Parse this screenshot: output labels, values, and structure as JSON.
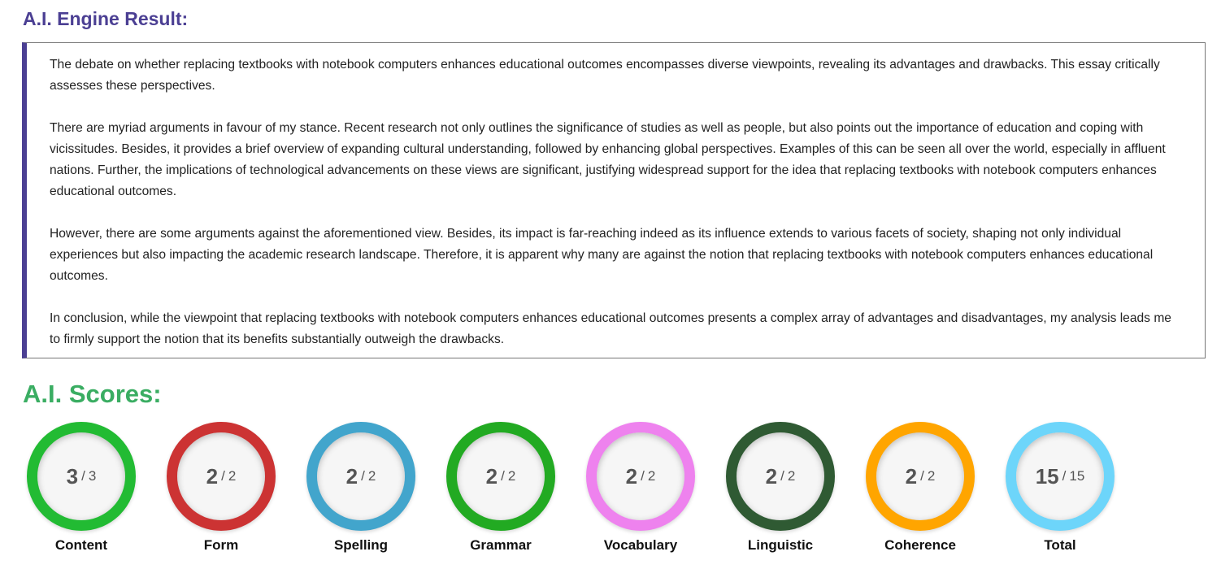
{
  "header": {
    "title": "A.I. Engine Result:",
    "color": "#4b3f93"
  },
  "essay": {
    "paragraphs": [
      "The debate on whether replacing textbooks with notebook computers enhances educational outcomes encompasses diverse viewpoints, revealing its advantages and drawbacks. This essay critically assesses these perspectives.",
      "There are myriad arguments in favour of my stance. Recent research not only outlines the significance of studies as well as people, but also points out the importance of education and coping with vicissitudes. Besides, it provides a brief overview of expanding cultural understanding, followed by enhancing global perspectives. Examples of this can be seen all over the world, especially in affluent nations. Further, the implications of technological advancements on these views are significant, justifying widespread support for the idea that replacing textbooks with notebook computers enhances educational outcomes.",
      "However, there are some arguments against the aforementioned view. Besides, its impact is far-reaching indeed as its influence extends to various facets of society, shaping not only individual experiences but also impacting the academic research landscape. Therefore, it is apparent why many are against the notion that replacing textbooks with notebook computers enhances educational outcomes.",
      "In conclusion, while the viewpoint that replacing textbooks with notebook computers enhances educational outcomes presents a complex array of advantages and disadvantages, my analysis leads me to firmly support the notion that its benefits substantially outweigh the drawbacks."
    ]
  },
  "scores": {
    "title": "A.I. Scores:",
    "color": "#3aad62",
    "separator": "/",
    "items": [
      {
        "label": "Content",
        "score": 3,
        "max": 3,
        "color": "#22bb33"
      },
      {
        "label": "Form",
        "score": 2,
        "max": 2,
        "color": "#cc3333"
      },
      {
        "label": "Spelling",
        "score": 2,
        "max": 2,
        "color": "#42a5cc"
      },
      {
        "label": "Grammar",
        "score": 2,
        "max": 2,
        "color": "#22aa22"
      },
      {
        "label": "Vocabulary",
        "score": 2,
        "max": 2,
        "color": "#ee82ee"
      },
      {
        "label": "Linguistic",
        "score": 2,
        "max": 2,
        "color": "#2f5a33"
      },
      {
        "label": "Coherence",
        "score": 2,
        "max": 2,
        "color": "#ffa500"
      },
      {
        "label": "Total",
        "score": 15,
        "max": 15,
        "color": "#6dd5fa"
      }
    ]
  }
}
